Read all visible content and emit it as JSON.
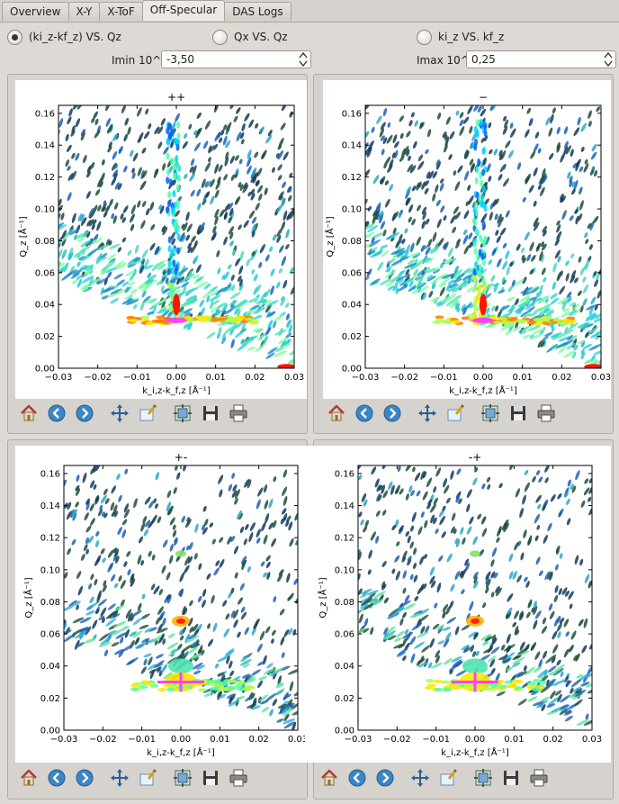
{
  "tabs": [
    {
      "label": "Overview",
      "active": false
    },
    {
      "label": "X-Y",
      "active": false
    },
    {
      "label": "X-ToF",
      "active": false
    },
    {
      "label": "Off-Specular",
      "active": true
    },
    {
      "label": "DAS Logs",
      "active": false
    }
  ],
  "radios": [
    {
      "label": "(ki_z-kf_z) VS. Qz",
      "selected": true
    },
    {
      "label": "Qx VS. Qz",
      "selected": false
    },
    {
      "label": "ki_z VS. kf_z",
      "selected": false
    }
  ],
  "imin": {
    "label": "Imin 10^",
    "value": "-3,50"
  },
  "imax": {
    "label": "Imax 10^",
    "value": "0,25"
  },
  "plots": [
    {
      "title": "++",
      "xlabel": "k_i,z-k_f,z [Å⁻¹]",
      "ylabel": "Q_z [Å⁻¹]"
    },
    {
      "title": "−",
      "xlabel": "k_i,z-k_f,z [Å⁻¹]",
      "ylabel": "Q_z [Å⁻¹]"
    },
    {
      "title": "+-",
      "xlabel": "k_i,z-k_f,z [Å⁻¹]",
      "ylabel": "Q_z [Å⁻¹]"
    },
    {
      "title": "-+",
      "xlabel": "k_i,z-k_f,z [Å⁻¹]",
      "ylabel": "Q_z [Å⁻¹]"
    }
  ],
  "axes": {
    "xticks": [
      "−0.03",
      "−0.02",
      "−0.01",
      "0.00",
      "0.01",
      "0.02",
      "0.03"
    ],
    "yticks": [
      "0.00",
      "0.02",
      "0.04",
      "0.06",
      "0.08",
      "0.10",
      "0.12",
      "0.14",
      "0.16"
    ],
    "xlim": [
      -0.03,
      0.03
    ],
    "ylim": [
      0,
      0.165
    ]
  },
  "toolbar_icons": [
    "home-icon",
    "back-arrow-icon",
    "forward-arrow-icon",
    "pan-icon",
    "zoom-icon",
    "configure-subplots-icon",
    "save-icon",
    "print-icon"
  ],
  "colors": {
    "accent_blue": "#3b86c4",
    "panel_bg": "#ddd9d4"
  }
}
